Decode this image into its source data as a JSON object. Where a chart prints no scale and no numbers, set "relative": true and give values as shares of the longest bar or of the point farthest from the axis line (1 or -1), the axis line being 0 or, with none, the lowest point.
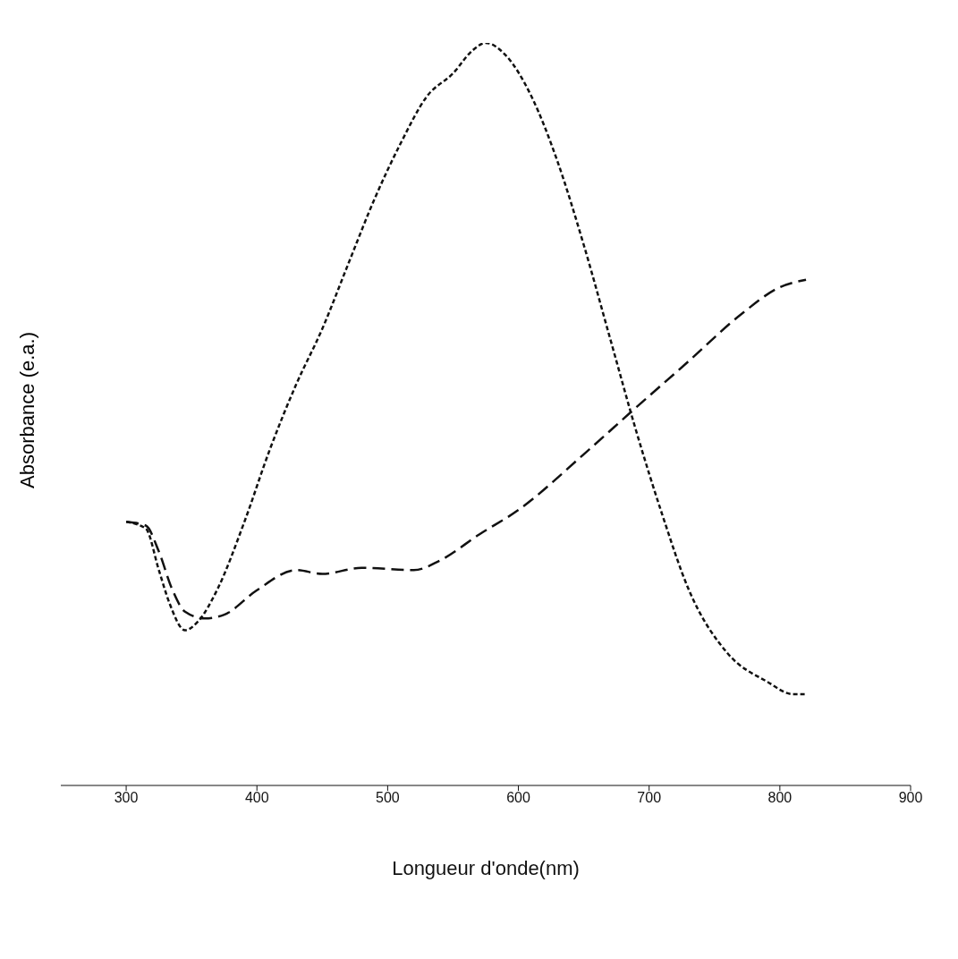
{
  "chart_data": {
    "type": "line",
    "xlabel": "Longueur d'onde(nm)",
    "ylabel": "Absorbance (e.a.)",
    "relative": true,
    "xlim": [
      250,
      900
    ],
    "xticks": [
      300,
      400,
      500,
      600,
      700,
      800,
      900
    ],
    "grid": false,
    "legend": false,
    "marker": "none",
    "series": [
      {
        "color": "#111111",
        "line_style": "dotted",
        "x": [
          300,
          315,
          325,
          333,
          345,
          355,
          370,
          390,
          410,
          430,
          450,
          470,
          490,
          510,
          530,
          550,
          565,
          575,
          590,
          610,
          630,
          650,
          670,
          690,
          710,
          730,
          760,
          790,
          810,
          820
        ],
        "values": [
          0.355,
          0.346,
          0.29,
          0.246,
          0.209,
          0.221,
          0.265,
          0.353,
          0.453,
          0.54,
          0.615,
          0.703,
          0.79,
          0.865,
          0.928,
          0.959,
          0.99,
          1.0,
          0.984,
          0.928,
          0.84,
          0.728,
          0.603,
          0.478,
          0.365,
          0.265,
          0.178,
          0.14,
          0.123,
          0.123
        ]
      },
      {
        "color": "#111111",
        "line_style": "dashed",
        "x": [
          300,
          315,
          325,
          335,
          345,
          360,
          375,
          400,
          430,
          450,
          480,
          520,
          540,
          570,
          600,
          650,
          690,
          730,
          770,
          800,
          820
        ],
        "values": [
          0.355,
          0.35,
          0.315,
          0.265,
          0.234,
          0.225,
          0.23,
          0.263,
          0.29,
          0.285,
          0.293,
          0.29,
          0.303,
          0.338,
          0.371,
          0.446,
          0.509,
          0.571,
          0.634,
          0.671,
          0.681
        ]
      }
    ]
  }
}
